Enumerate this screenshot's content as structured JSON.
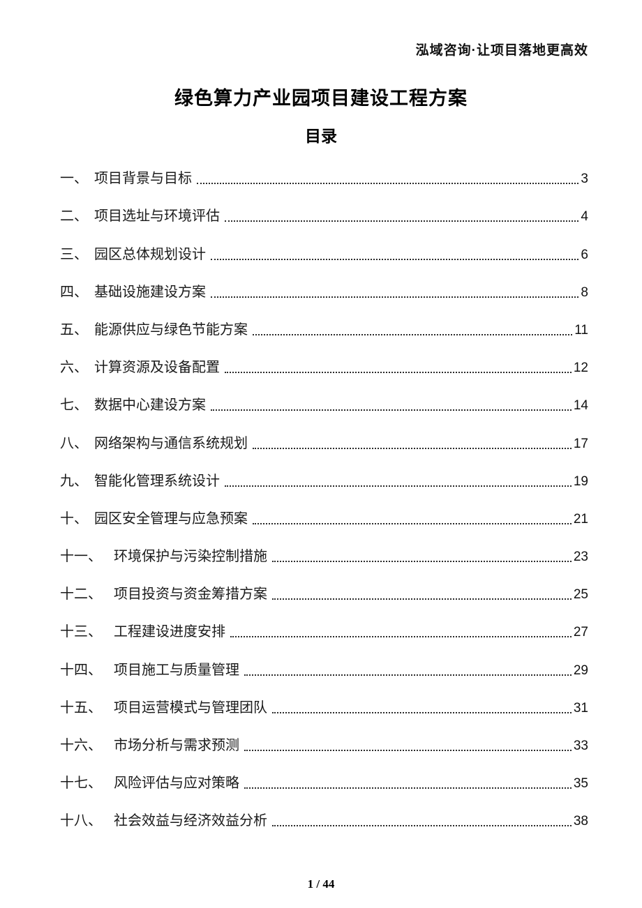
{
  "header": {
    "brand": "泓域咨询·让项目落地更高效"
  },
  "document": {
    "title": "绿色算力产业园项目建设工程方案",
    "toc_heading": "目录"
  },
  "toc": {
    "entries": [
      {
        "num": "一、",
        "label": "项目背景与目标",
        "page": "3"
      },
      {
        "num": "二、",
        "label": "项目选址与环境评估",
        "page": "4"
      },
      {
        "num": "三、",
        "label": "园区总体规划设计",
        "page": "6"
      },
      {
        "num": "四、",
        "label": "基础设施建设方案",
        "page": "8"
      },
      {
        "num": "五、",
        "label": "能源供应与绿色节能方案",
        "page": "11"
      },
      {
        "num": "六、",
        "label": "计算资源及设备配置",
        "page": "12"
      },
      {
        "num": "七、",
        "label": "数据中心建设方案",
        "page": "14"
      },
      {
        "num": "八、",
        "label": "网络架构与通信系统规划",
        "page": "17"
      },
      {
        "num": "九、",
        "label": "智能化管理系统设计",
        "page": "19"
      },
      {
        "num": "十、",
        "label": "园区安全管理与应急预案",
        "page": "21"
      },
      {
        "num": "十一、",
        "label": "环境保护与污染控制措施",
        "page": "23"
      },
      {
        "num": "十二、",
        "label": "项目投资与资金筹措方案",
        "page": "25"
      },
      {
        "num": "十三、",
        "label": "工程建设进度安排",
        "page": "27"
      },
      {
        "num": "十四、",
        "label": "项目施工与质量管理",
        "page": "29"
      },
      {
        "num": "十五、",
        "label": "项目运营模式与管理团队",
        "page": "31"
      },
      {
        "num": "十六、",
        "label": "市场分析与需求预测",
        "page": "33"
      },
      {
        "num": "十七、",
        "label": "风险评估与应对策略",
        "page": "35"
      },
      {
        "num": "十八、",
        "label": "社会效益与经济效益分析",
        "page": "38"
      }
    ]
  },
  "footer": {
    "page_indicator": "1 / 44"
  }
}
